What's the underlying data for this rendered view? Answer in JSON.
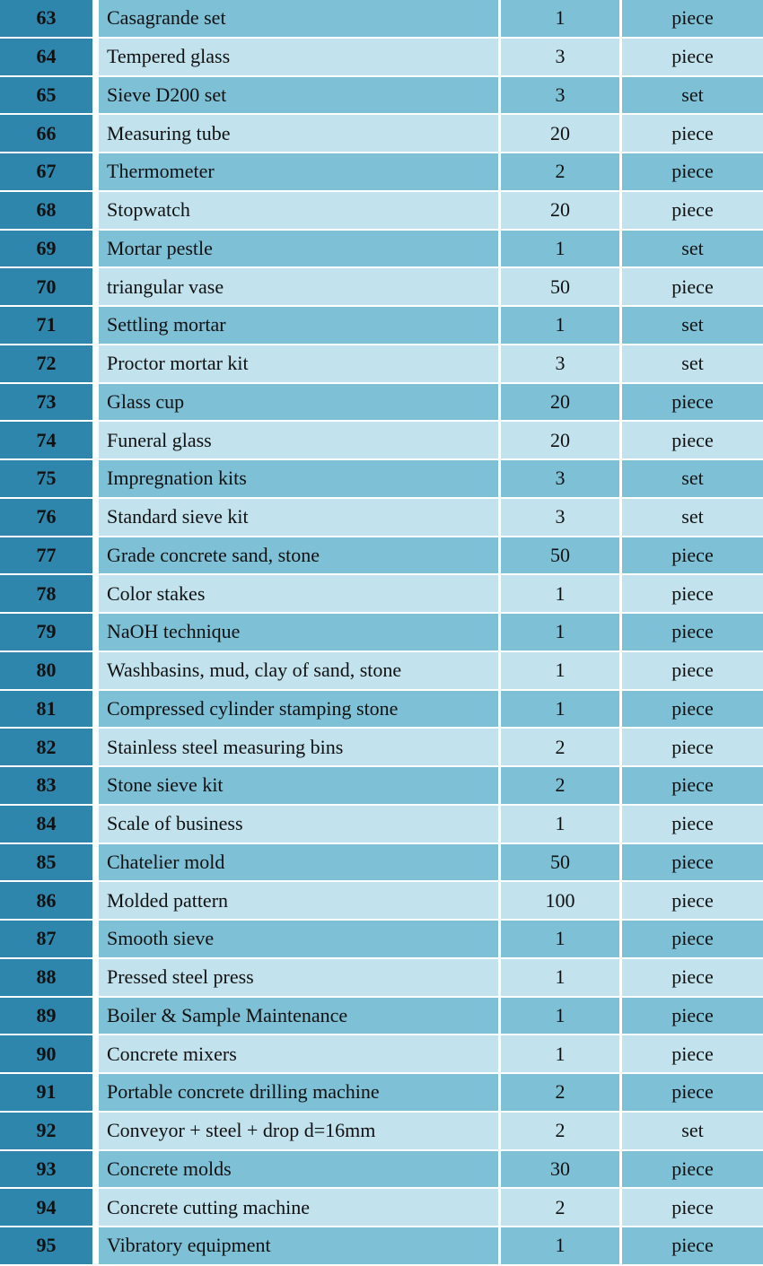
{
  "colors": {
    "number_column": "#2e86ad",
    "row_dark": "#7ec0d6",
    "row_light": "#c2e2ed"
  },
  "rows": [
    {
      "no": "63",
      "name": "Casagrande set",
      "qty": "1",
      "unit": "piece"
    },
    {
      "no": "64",
      "name": "Tempered glass",
      "qty": "3",
      "unit": "piece"
    },
    {
      "no": "65",
      "name": "Sieve D200 set",
      "qty": "3",
      "unit": "set"
    },
    {
      "no": "66",
      "name": "Measuring tube",
      "qty": "20",
      "unit": "piece"
    },
    {
      "no": "67",
      "name": "Thermometer",
      "qty": "2",
      "unit": "piece"
    },
    {
      "no": "68",
      "name": "Stopwatch",
      "qty": "20",
      "unit": "piece"
    },
    {
      "no": "69",
      "name": "Mortar pestle",
      "qty": "1",
      "unit": "set"
    },
    {
      "no": "70",
      "name": "triangular vase",
      "qty": "50",
      "unit": "piece"
    },
    {
      "no": "71",
      "name": "Settling mortar",
      "qty": "1",
      "unit": "set"
    },
    {
      "no": "72",
      "name": "Proctor mortar kit",
      "qty": "3",
      "unit": "set"
    },
    {
      "no": "73",
      "name": "Glass cup",
      "qty": "20",
      "unit": "piece"
    },
    {
      "no": "74",
      "name": "Funeral glass",
      "qty": "20",
      "unit": "piece"
    },
    {
      "no": "75",
      "name": "Impregnation kits",
      "qty": "3",
      "unit": "set"
    },
    {
      "no": "76",
      "name": "Standard  sieve kit",
      "qty": "3",
      "unit": "set"
    },
    {
      "no": "77",
      "name": "Grade concrete sand, stone",
      "qty": "50",
      "unit": "piece"
    },
    {
      "no": "78",
      "name": "Color stakes",
      "qty": "1",
      "unit": "piece"
    },
    {
      "no": "79",
      "name": "NaOH technique",
      "qty": "1",
      "unit": "piece"
    },
    {
      "no": "80",
      "name": "Washbasins, mud, clay of sand, stone",
      "qty": "1",
      "unit": "piece"
    },
    {
      "no": "81",
      "name": "Compressed cylinder stamping stone",
      "qty": "1",
      "unit": "piece"
    },
    {
      "no": "82",
      "name": "Stainless steel measuring bins",
      "qty": "2",
      "unit": "piece"
    },
    {
      "no": "83",
      "name": "Stone sieve kit",
      "qty": "2",
      "unit": "piece"
    },
    {
      "no": "84",
      "name": "Scale of business",
      "qty": "1",
      "unit": "piece"
    },
    {
      "no": "85",
      "name": "Chatelier mold",
      "qty": "50",
      "unit": "piece"
    },
    {
      "no": "86",
      "name": "Molded pattern",
      "qty": "100",
      "unit": "piece"
    },
    {
      "no": "87",
      "name": "Smooth sieve",
      "qty": "1",
      "unit": "piece"
    },
    {
      "no": "88",
      "name": "Pressed steel press",
      "qty": "1",
      "unit": "piece"
    },
    {
      "no": "89",
      "name": "Boiler & Sample  Maintenance",
      "qty": "1",
      "unit": "piece"
    },
    {
      "no": "90",
      "name": "Concrete mixers",
      "qty": "1",
      "unit": "piece"
    },
    {
      "no": "91",
      "name": "Portable concrete drilling machine",
      "qty": "2",
      "unit": "piece"
    },
    {
      "no": "92",
      "name": "Conveyor + steel + drop  d=16mm",
      "qty": "2",
      "unit": "set"
    },
    {
      "no": "93",
      "name": "Concrete molds",
      "qty": "30",
      "unit": "piece"
    },
    {
      "no": "94",
      "name": "Concrete cutting machine",
      "qty": "2",
      "unit": "piece"
    },
    {
      "no": "95",
      "name": "Vibratory equipment",
      "qty": "1",
      "unit": "piece"
    }
  ]
}
